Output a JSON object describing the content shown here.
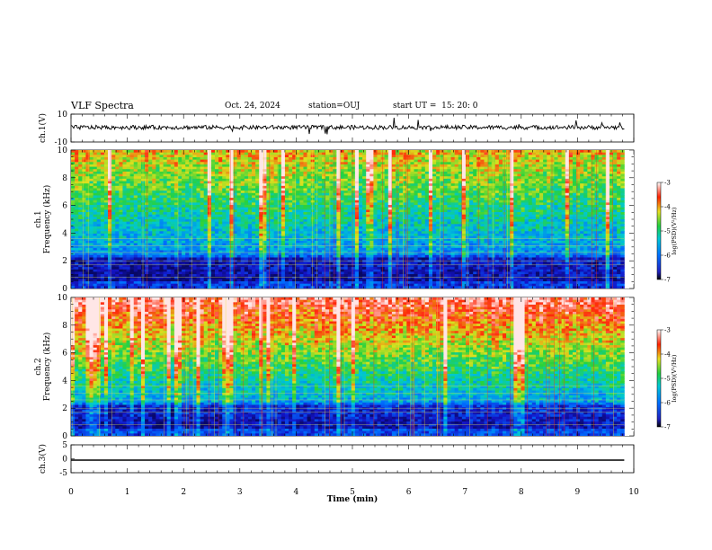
{
  "header": {
    "title": "VLF Spectra",
    "date": "Oct. 24, 2024",
    "station": "station=OUJ",
    "start": "start UT =  15: 20: 0"
  },
  "chart_data": [
    {
      "type": "line",
      "panel": "ch.1 waveform",
      "ylabel": "ch.1(V)",
      "ylim": [
        -10,
        10
      ],
      "yticks": [
        "10",
        "-10"
      ],
      "x_range_min": [
        0,
        9.83
      ],
      "baseline_v": 0.5,
      "noise_amplitude_v": 1.5
    },
    {
      "type": "heatmap",
      "panel": "ch.1 spectrogram",
      "ylabel": "ch.1\nFrequency (kHz)",
      "ylim": [
        0,
        10
      ],
      "yticks": [
        "0",
        "2",
        "4",
        "6",
        "8",
        "10"
      ],
      "colorbar": {
        "label": "log(PSD)(V²/Hz)",
        "range": [
          -7,
          -3
        ],
        "ticks": [
          "-3",
          "-4",
          "-5",
          "-6",
          "-7"
        ]
      },
      "x_range_min": [
        0,
        9.83
      ]
    },
    {
      "type": "heatmap",
      "panel": "ch.2 spectrogram",
      "ylabel": "ch.2\nFrequency (kHz)",
      "ylim": [
        0,
        10
      ],
      "yticks": [
        "0",
        "2",
        "4",
        "6",
        "8",
        "10"
      ],
      "colorbar": {
        "label": "log(PSD)(V²/Hz)",
        "range": [
          -7,
          -3
        ],
        "ticks": [
          "-3",
          "-4",
          "-5",
          "-6",
          "-7"
        ]
      },
      "x_range_min": [
        0,
        9.83
      ]
    },
    {
      "type": "line",
      "panel": "ch.3 waveform",
      "ylabel": "ch.3(V)",
      "ylim": [
        -5,
        5
      ],
      "yticks": [
        "5",
        "0",
        "-5"
      ],
      "x_range_min": [
        0,
        9.83
      ],
      "constant_v": -0.5,
      "xlabel": "Time (min)",
      "xlim": [
        0,
        10
      ],
      "xticks": [
        "0",
        "1",
        "2",
        "3",
        "4",
        "5",
        "6",
        "7",
        "8",
        "9",
        "10"
      ]
    }
  ]
}
